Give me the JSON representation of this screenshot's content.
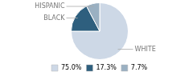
{
  "chart_data": {
    "type": "pie",
    "categories": [
      "WHITE",
      "BLACK",
      "HISPANIC"
    ],
    "values": [
      75.0,
      17.3,
      7.7
    ],
    "value_labels": [
      "75.0%",
      "17.3%",
      "7.7%"
    ],
    "colors": [
      "#cdd8e6",
      "#2e5f7e",
      "#9ab0c2"
    ],
    "legend": "lower left"
  }
}
